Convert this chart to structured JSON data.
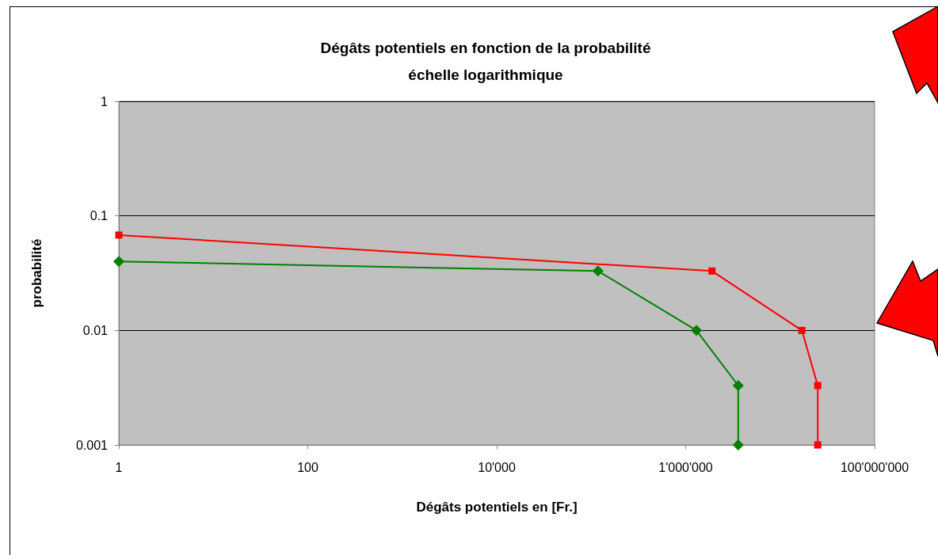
{
  "chart_data": {
    "type": "line",
    "title": "Dégâts potentiels en fonction de la probabilité\néchelle logarithmique",
    "xlabel": "Dégâts potentiels en [Fr.]",
    "ylabel": "probabilité",
    "log": "xy",
    "xlim": [
      1,
      100000000
    ],
    "xticks": [
      {
        "value": 1,
        "label": "1"
      },
      {
        "value": 100,
        "label": "100"
      },
      {
        "value": 10000,
        "label": "10'000"
      },
      {
        "value": 1000000,
        "label": "1'000'000"
      },
      {
        "value": 100000000,
        "label": "100'000'000"
      }
    ],
    "ylim": [
      0.001,
      1
    ],
    "yticks": [
      0.001,
      0.01,
      0.1,
      1
    ],
    "grid": "y",
    "series": [
      {
        "color": "#ff0000",
        "marker": "square",
        "x": [
          1,
          1900000,
          17000000,
          25000000,
          25000000
        ],
        "values": [
          0.068,
          0.033,
          0.01,
          0.0033,
          0.001
        ]
      },
      {
        "color": "#008000",
        "marker": "diamond",
        "x": [
          1,
          118000,
          1300000,
          3600000,
          3600000
        ],
        "values": [
          0.04,
          0.033,
          0.01,
          0.0033,
          0.001
        ]
      }
    ]
  }
}
